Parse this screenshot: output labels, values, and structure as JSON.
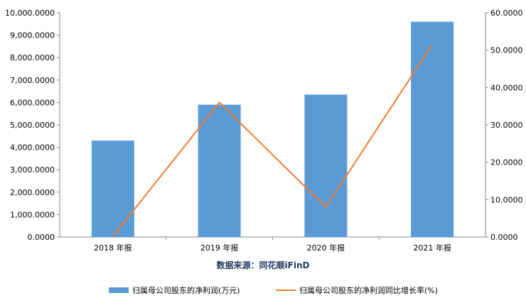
{
  "chart_data": {
    "type": "bar",
    "categories": [
      "2018 年报",
      "2019 年报",
      "2020 年报",
      "2021 年报"
    ],
    "series": [
      {
        "name": "归属母公司股东的净利润(万元)",
        "type": "bar",
        "axis": "left",
        "color": "#5b9bd5",
        "values": [
          4300,
          5900,
          6350,
          9600
        ]
      },
      {
        "name": "归属母公司股东的净利润同比增长率(%)",
        "type": "line",
        "axis": "right",
        "color": "#ed7d31",
        "values": [
          0.2,
          36.0,
          8.0,
          51.5
        ]
      }
    ],
    "y_left": {
      "min": 0,
      "max": 10000,
      "step": 1000,
      "tick_labels": [
        "0.0000",
        "1,000.0000",
        "2,000.0000",
        "3,000.0000",
        "4,000.0000",
        "5,000.0000",
        "6,000.0000",
        "7,000.0000",
        "8,000.0000",
        "9,000.0000",
        "10,000.0000"
      ]
    },
    "y_right": {
      "min": 0,
      "max": 60,
      "step": 10,
      "tick_labels": [
        "0.0000",
        "10.0000",
        "20.0000",
        "30.0000",
        "40.0000",
        "50.0000",
        "60.0000"
      ]
    },
    "source_label": "数据来源：同花顺iFinD",
    "legend_position": "bottom",
    "grid": false
  }
}
